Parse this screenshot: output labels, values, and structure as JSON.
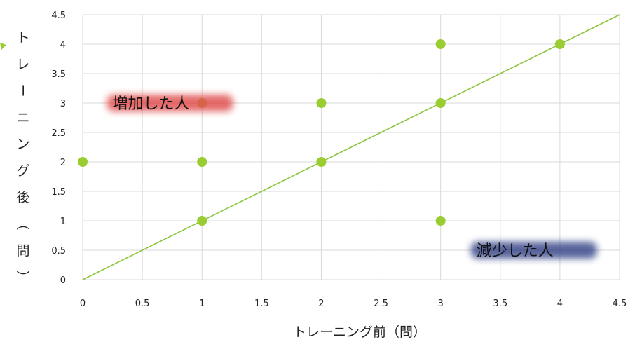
{
  "chart_data": {
    "type": "scatter",
    "xlabel": "トレーニング前（問）",
    "ylabel": "トレーニング後（問）",
    "xlim": [
      0,
      4.5
    ],
    "ylim": [
      0,
      4.5
    ],
    "x_ticks": [
      "0",
      "0.5",
      "1",
      "1.5",
      "2",
      "2.5",
      "3",
      "3.5",
      "4",
      "4.5"
    ],
    "y_ticks": [
      "0",
      "0.5",
      "1",
      "1.5",
      "2",
      "2.5",
      "3",
      "3.5",
      "4",
      "4.5"
    ],
    "grid": true,
    "points": [
      {
        "x": 0,
        "y": 2
      },
      {
        "x": 1,
        "y": 1
      },
      {
        "x": 1,
        "y": 2
      },
      {
        "x": 1,
        "y": 3
      },
      {
        "x": 2,
        "y": 2
      },
      {
        "x": 2,
        "y": 3
      },
      {
        "x": 3,
        "y": 1
      },
      {
        "x": 3,
        "y": 3
      },
      {
        "x": 3,
        "y": 4
      },
      {
        "x": 4,
        "y": 4
      }
    ],
    "reference_line": {
      "from": [
        0,
        0
      ],
      "to": [
        4.5,
        4.5
      ]
    },
    "annotations": [
      {
        "text": "増加した人",
        "x": 0.25,
        "y": 3,
        "highlight": "#e05050"
      },
      {
        "text": "減少した人",
        "x": 3.3,
        "y": 0.5,
        "highlight": "#3a4a8a"
      }
    ],
    "colors": {
      "points": "#9acd32",
      "line": "#8cc63f",
      "grid": "#d9d9d9"
    }
  }
}
